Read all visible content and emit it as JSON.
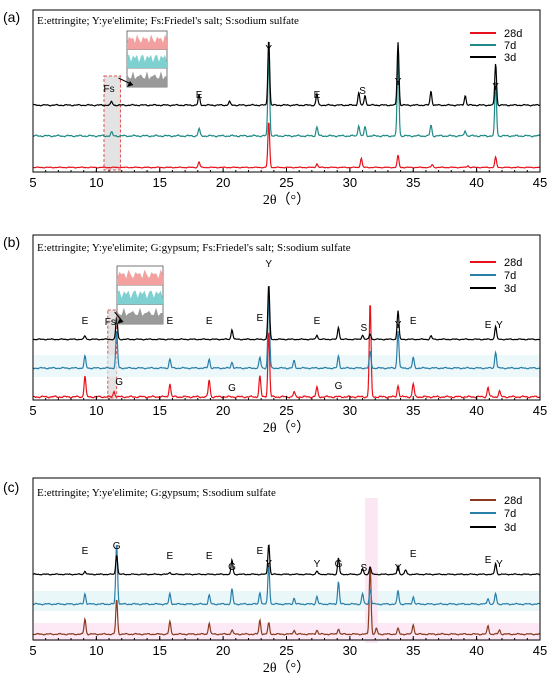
{
  "chart_data": [
    {
      "type": "line",
      "panel_label": "(a)",
      "header": "E:ettringite; Y:ye'elimite; Fs:Friedel's salt; S:sodium sulfate",
      "xlabel": "2θ（°）",
      "xlim": [
        5,
        45
      ],
      "xticks": [
        5,
        10,
        15,
        20,
        25,
        30,
        35,
        40,
        45
      ],
      "legend_position": "top-right",
      "series": [
        {
          "name": "28d",
          "color": "#e8111b",
          "peaks": [
            [
              18.1,
              0.12
            ],
            [
              23.6,
              1.0
            ],
            [
              27.4,
              0.08
            ],
            [
              30.9,
              0.2
            ],
            [
              33.8,
              0.26
            ],
            [
              41.5,
              0.22
            ],
            [
              36.5,
              0.06
            ],
            [
              39.3,
              0.04
            ]
          ]
        },
        {
          "name": "7d",
          "color": "#1f8a86",
          "peaks": [
            [
              11.2,
              0.04
            ],
            [
              18.1,
              0.08
            ],
            [
              23.6,
              0.92
            ],
            [
              27.4,
              0.1
            ],
            [
              30.7,
              0.12
            ],
            [
              31.2,
              0.1
            ],
            [
              33.8,
              0.88
            ],
            [
              36.4,
              0.12
            ],
            [
              39.1,
              0.06
            ],
            [
              41.5,
              0.6
            ]
          ]
        },
        {
          "name": "3d",
          "color": "#000000",
          "peaks": [
            [
              11.2,
              0.05
            ],
            [
              18.1,
              0.14
            ],
            [
              20.5,
              0.05
            ],
            [
              23.6,
              0.95
            ],
            [
              27.4,
              0.16
            ],
            [
              30.7,
              0.18
            ],
            [
              31.2,
              0.14
            ],
            [
              33.8,
              0.9
            ],
            [
              36.4,
              0.2
            ],
            [
              39.1,
              0.14
            ],
            [
              41.5,
              0.6
            ]
          ]
        }
      ],
      "annotations": [
        {
          "text": "Fs",
          "x": 11.0
        },
        {
          "text": "E",
          "x": 18.1
        },
        {
          "text": "Y",
          "x": 23.6
        },
        {
          "text": "E",
          "x": 27.4
        },
        {
          "text": "S",
          "x": 31.0
        },
        {
          "text": "Y",
          "x": 33.8
        },
        {
          "text": "Y",
          "x": 41.5
        }
      ],
      "highlight_range": [
        10.6,
        11.9
      ]
    },
    {
      "type": "line",
      "panel_label": "(b)",
      "header": "E:ettringite; Y:ye'elimite; G:gypsum; Fs:Friedel's salt; S:sodium sulfate",
      "xlabel": "2θ（°）",
      "xlim": [
        5,
        45
      ],
      "xticks": [
        5,
        10,
        15,
        20,
        25,
        30,
        35,
        40,
        45
      ],
      "legend_position": "top-right",
      "series": [
        {
          "name": "28d",
          "color": "#e8111b",
          "peaks": [
            [
              9.1,
              0.22
            ],
            [
              11.4,
              0.06
            ],
            [
              15.8,
              0.14
            ],
            [
              18.9,
              0.18
            ],
            [
              22.9,
              0.22
            ],
            [
              23.6,
              0.7
            ],
            [
              25.6,
              0.05
            ],
            [
              27.4,
              0.1
            ],
            [
              31.6,
              1.0
            ],
            [
              33.8,
              0.12
            ],
            [
              35.0,
              0.14
            ],
            [
              40.9,
              0.1
            ],
            [
              41.8,
              0.06
            ]
          ]
        },
        {
          "name": "7d",
          "color": "#2a7fa8",
          "peaks": [
            [
              9.1,
              0.16
            ],
            [
              11.6,
              0.5
            ],
            [
              15.8,
              0.12
            ],
            [
              18.9,
              0.12
            ],
            [
              20.7,
              0.08
            ],
            [
              22.9,
              0.14
            ],
            [
              23.6,
              1.0
            ],
            [
              25.6,
              0.1
            ],
            [
              29.1,
              0.16
            ],
            [
              31.6,
              0.22
            ],
            [
              33.8,
              0.5
            ],
            [
              35.0,
              0.14
            ],
            [
              41.5,
              0.22
            ]
          ]
        },
        {
          "name": "3d",
          "color": "#000000",
          "peaks": [
            [
              9.1,
              0.06
            ],
            [
              11.6,
              0.4
            ],
            [
              20.7,
              0.18
            ],
            [
              23.6,
              1.0
            ],
            [
              27.4,
              0.08
            ],
            [
              29.1,
              0.22
            ],
            [
              31.0,
              0.08
            ],
            [
              31.6,
              0.1
            ],
            [
              33.8,
              0.52
            ],
            [
              36.4,
              0.06
            ],
            [
              41.5,
              0.24
            ]
          ]
        }
      ],
      "annotations": [
        {
          "text": "E",
          "x": 9.1
        },
        {
          "text": "Fs",
          "x": 11.1
        },
        {
          "text": "G",
          "x": 11.8
        },
        {
          "text": "E",
          "x": 15.8
        },
        {
          "text": "E",
          "x": 18.9
        },
        {
          "text": "G",
          "x": 20.7
        },
        {
          "text": "E",
          "x": 22.9
        },
        {
          "text": "Y",
          "x": 23.6
        },
        {
          "text": "E",
          "x": 27.4
        },
        {
          "text": "G",
          "x": 29.1
        },
        {
          "text": "S",
          "x": 31.1
        },
        {
          "text": "Y",
          "x": 33.8
        },
        {
          "text": "E",
          "x": 35.0
        },
        {
          "text": "E",
          "x": 40.9
        },
        {
          "text": "Y",
          "x": 41.8
        }
      ],
      "highlight_range": [
        10.9,
        11.6
      ]
    },
    {
      "type": "line",
      "panel_label": "(c)",
      "header": "E:ettringite; Y:ye'elimite; G:gypsum; S:sodium sulfate",
      "xlabel": "2θ（°）",
      "xlim": [
        5,
        45
      ],
      "xticks": [
        5,
        10,
        15,
        20,
        25,
        30,
        35,
        40,
        45
      ],
      "legend_position": "top-right",
      "series": [
        {
          "name": "28d",
          "color": "#8a3a1e",
          "peaks": [
            [
              9.1,
              0.22
            ],
            [
              11.6,
              0.5
            ],
            [
              15.8,
              0.18
            ],
            [
              18.9,
              0.16
            ],
            [
              20.7,
              0.06
            ],
            [
              22.9,
              0.2
            ],
            [
              23.6,
              0.16
            ],
            [
              25.6,
              0.06
            ],
            [
              27.4,
              0.06
            ],
            [
              29.1,
              0.08
            ],
            [
              31.6,
              1.0
            ],
            [
              32.1,
              0.08
            ],
            [
              33.8,
              0.08
            ],
            [
              35.0,
              0.14
            ],
            [
              40.9,
              0.12
            ],
            [
              41.8,
              0.06
            ]
          ]
        },
        {
          "name": "7d",
          "color": "#2a7fa8",
          "peaks": [
            [
              9.1,
              0.14
            ],
            [
              11.6,
              0.82
            ],
            [
              15.8,
              0.14
            ],
            [
              18.9,
              0.12
            ],
            [
              20.7,
              0.2
            ],
            [
              22.9,
              0.16
            ],
            [
              23.6,
              0.52
            ],
            [
              25.6,
              0.08
            ],
            [
              27.4,
              0.1
            ],
            [
              29.1,
              0.3
            ],
            [
              31.0,
              0.14
            ],
            [
              31.6,
              0.2
            ],
            [
              33.8,
              0.18
            ],
            [
              35.0,
              0.1
            ],
            [
              40.9,
              0.08
            ],
            [
              41.5,
              0.14
            ]
          ]
        },
        {
          "name": "3d",
          "color": "#000000",
          "peaks": [
            [
              9.1,
              0.06
            ],
            [
              11.6,
              0.36
            ],
            [
              15.8,
              0.04
            ],
            [
              20.7,
              0.26
            ],
            [
              23.6,
              0.56
            ],
            [
              27.4,
              0.06
            ],
            [
              29.1,
              0.3
            ],
            [
              31.0,
              0.1
            ],
            [
              31.6,
              0.14
            ],
            [
              33.8,
              0.16
            ],
            [
              34.4,
              0.08
            ],
            [
              41.5,
              0.2
            ]
          ]
        }
      ],
      "annotations": [
        {
          "text": "E",
          "x": 9.1
        },
        {
          "text": "G",
          "x": 11.6
        },
        {
          "text": "E",
          "x": 15.8
        },
        {
          "text": "E",
          "x": 18.9
        },
        {
          "text": "G",
          "x": 20.7
        },
        {
          "text": "E",
          "x": 22.9
        },
        {
          "text": "Y",
          "x": 23.6
        },
        {
          "text": "Y",
          "x": 27.4
        },
        {
          "text": "G",
          "x": 29.1
        },
        {
          "text": "S",
          "x": 31.1
        },
        {
          "text": "Y",
          "x": 33.8
        },
        {
          "text": "E",
          "x": 35.0
        },
        {
          "text": "E",
          "x": 40.9
        },
        {
          "text": "Y",
          "x": 41.8
        }
      ]
    }
  ]
}
